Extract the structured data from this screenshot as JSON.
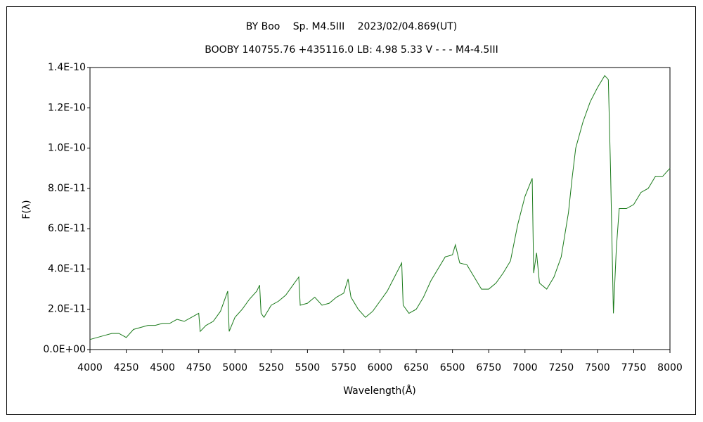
{
  "chart_data": {
    "type": "line",
    "title": "BY Boo　 Sp. M4.5III　 2023/02/04.869(UT)",
    "subtitle": "BOOBY 140755.76 +435116.0 LB: 4.98 5.33 V - - - M4-4.5III",
    "x_label": "Wavelength(Å)",
    "y_label": "F(λ)",
    "color": "#1a7a1a",
    "grid": false,
    "x": [
      4000,
      4050,
      4100,
      4150,
      4200,
      4250,
      4300,
      4350,
      4400,
      4450,
      4500,
      4550,
      4600,
      4650,
      4700,
      4750,
      4760,
      4800,
      4850,
      4900,
      4950,
      4960,
      5000,
      5050,
      5100,
      5150,
      5170,
      5180,
      5200,
      5250,
      5300,
      5350,
      5400,
      5440,
      5450,
      5500,
      5550,
      5600,
      5650,
      5700,
      5750,
      5780,
      5800,
      5850,
      5900,
      5950,
      6000,
      6050,
      6100,
      6150,
      6160,
      6200,
      6250,
      6300,
      6350,
      6400,
      6450,
      6500,
      6520,
      6550,
      6600,
      6650,
      6700,
      6750,
      6800,
      6850,
      6900,
      6950,
      7000,
      7050,
      7060,
      7080,
      7100,
      7150,
      7200,
      7250,
      7300,
      7325,
      7350,
      7400,
      7450,
      7500,
      7550,
      7575,
      7590,
      7610,
      7630,
      7650,
      7700,
      7750,
      7800,
      7850,
      7900,
      7950,
      8000
    ],
    "values": [
      5e-12,
      6e-12,
      7e-12,
      8e-12,
      8e-12,
      6e-12,
      1e-11,
      1.1e-11,
      1.2e-11,
      1.2e-11,
      1.3e-11,
      1.3e-11,
      1.5e-11,
      1.4e-11,
      1.6e-11,
      1.8e-11,
      9e-12,
      1.2e-11,
      1.4e-11,
      1.9e-11,
      2.9e-11,
      9e-12,
      1.6e-11,
      2e-11,
      2.5e-11,
      2.9e-11,
      3.2e-11,
      1.8e-11,
      1.6e-11,
      2.2e-11,
      2.4e-11,
      2.7e-11,
      3.2e-11,
      3.6e-11,
      2.2e-11,
      2.3e-11,
      2.6e-11,
      2.2e-11,
      2.3e-11,
      2.6e-11,
      2.8e-11,
      3.5e-11,
      2.6e-11,
      2e-11,
      1.6e-11,
      1.9e-11,
      2.4e-11,
      2.9e-11,
      3.6e-11,
      4.3e-11,
      2.2e-11,
      1.8e-11,
      2e-11,
      2.6e-11,
      3.4e-11,
      4e-11,
      4.6e-11,
      4.7e-11,
      5.2e-11,
      4.3e-11,
      4.2e-11,
      3.6e-11,
      3e-11,
      3e-11,
      3.3e-11,
      3.8e-11,
      4.4e-11,
      6.2e-11,
      7.6e-11,
      8.5e-11,
      3.8e-11,
      4.8e-11,
      3.3e-11,
      3e-11,
      3.6e-11,
      4.6e-11,
      6.8e-11,
      8.5e-11,
      1e-10,
      1.13e-10,
      1.23e-10,
      1.3e-10,
      1.36e-10,
      1.34e-10,
      9e-11,
      1.8e-11,
      5e-11,
      7e-11,
      7e-11,
      7.2e-11,
      7.8e-11,
      8e-11,
      8.6e-11,
      8.6e-11,
      9e-11
    ],
    "xlim": [
      4000,
      8000
    ],
    "xticks": [
      4000,
      4250,
      4500,
      4750,
      5000,
      5250,
      5500,
      5750,
      6000,
      6250,
      6500,
      6750,
      7000,
      7250,
      7500,
      7750,
      8000
    ],
    "ylim": [
      0,
      1.4e-10
    ],
    "yticks": [
      {
        "value": 0,
        "label": "0.0E+00"
      },
      {
        "value": 2e-11,
        "label": "2.0E-11"
      },
      {
        "value": 4e-11,
        "label": "4.0E-11"
      },
      {
        "value": 6e-11,
        "label": "6.0E-11"
      },
      {
        "value": 8e-11,
        "label": "8.0E-11"
      },
      {
        "value": 1e-10,
        "label": "1.0E-10"
      },
      {
        "value": 1.2e-10,
        "label": "1.2E-10"
      },
      {
        "value": 1.4e-10,
        "label": "1.4E-10"
      }
    ]
  }
}
